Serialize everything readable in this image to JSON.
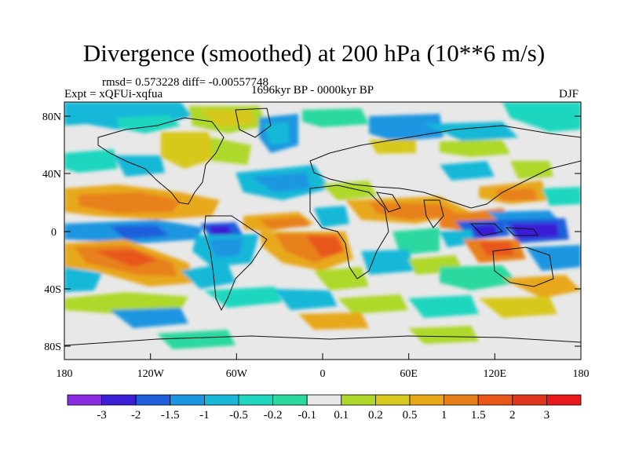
{
  "figure": {
    "title": "Divergence (smoothed) at 200 hPa (10**6 m/s)",
    "stats": "rmsd= 0.573228 diff= -0.00557748",
    "experiment": "Expt = xQFUi-xqfua",
    "period": "1696kyr BP - 0000kyr BP",
    "season": "DJF"
  },
  "axes": {
    "lat_ticks": [
      "80N",
      "40N",
      "0",
      "40S",
      "80S"
    ],
    "lon_ticks": [
      "180",
      "120W",
      "60W",
      "0",
      "60E",
      "120E",
      "180"
    ]
  },
  "colorbar": {
    "colors": [
      "#8a2be2",
      "#3a1fd6",
      "#1f5fdc",
      "#1c96e0",
      "#19b8d8",
      "#1fd6c0",
      "#2ad8a0",
      "#e8e8e8",
      "#aed82a",
      "#d8c81f",
      "#e8a81a",
      "#e8801a",
      "#e8561a",
      "#e0361c",
      "#e8181c"
    ],
    "labels": [
      "-3",
      "-2",
      "-1.5",
      "-1",
      "-0.5",
      "-0.2",
      "-0.1",
      "0.1",
      "0.2",
      "0.5",
      "1",
      "1.5",
      "2",
      "3"
    ]
  }
}
